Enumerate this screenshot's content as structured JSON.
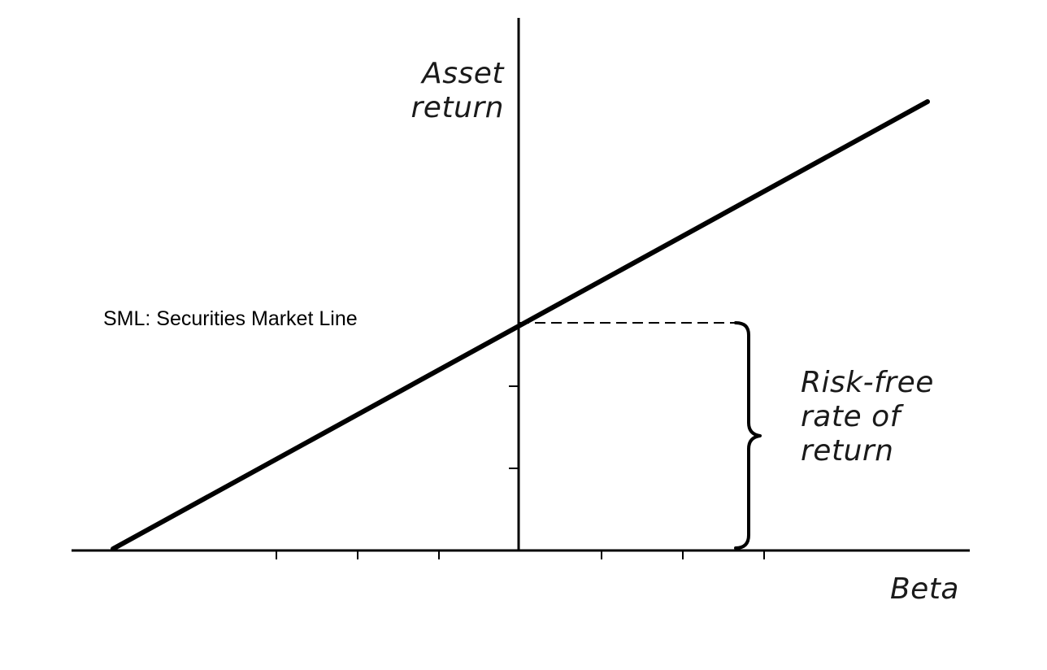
{
  "figure": {
    "y_axis_label": "Asset\nreturn",
    "x_axis_label": "Beta",
    "sml_label": "SML: Securities Market Line",
    "risk_free_label": "Risk-free\nrate of\nreturn"
  },
  "colors": {
    "line": "#000000",
    "axis": "#000000",
    "text": "#1a1a1a",
    "background": "#ffffff"
  }
}
